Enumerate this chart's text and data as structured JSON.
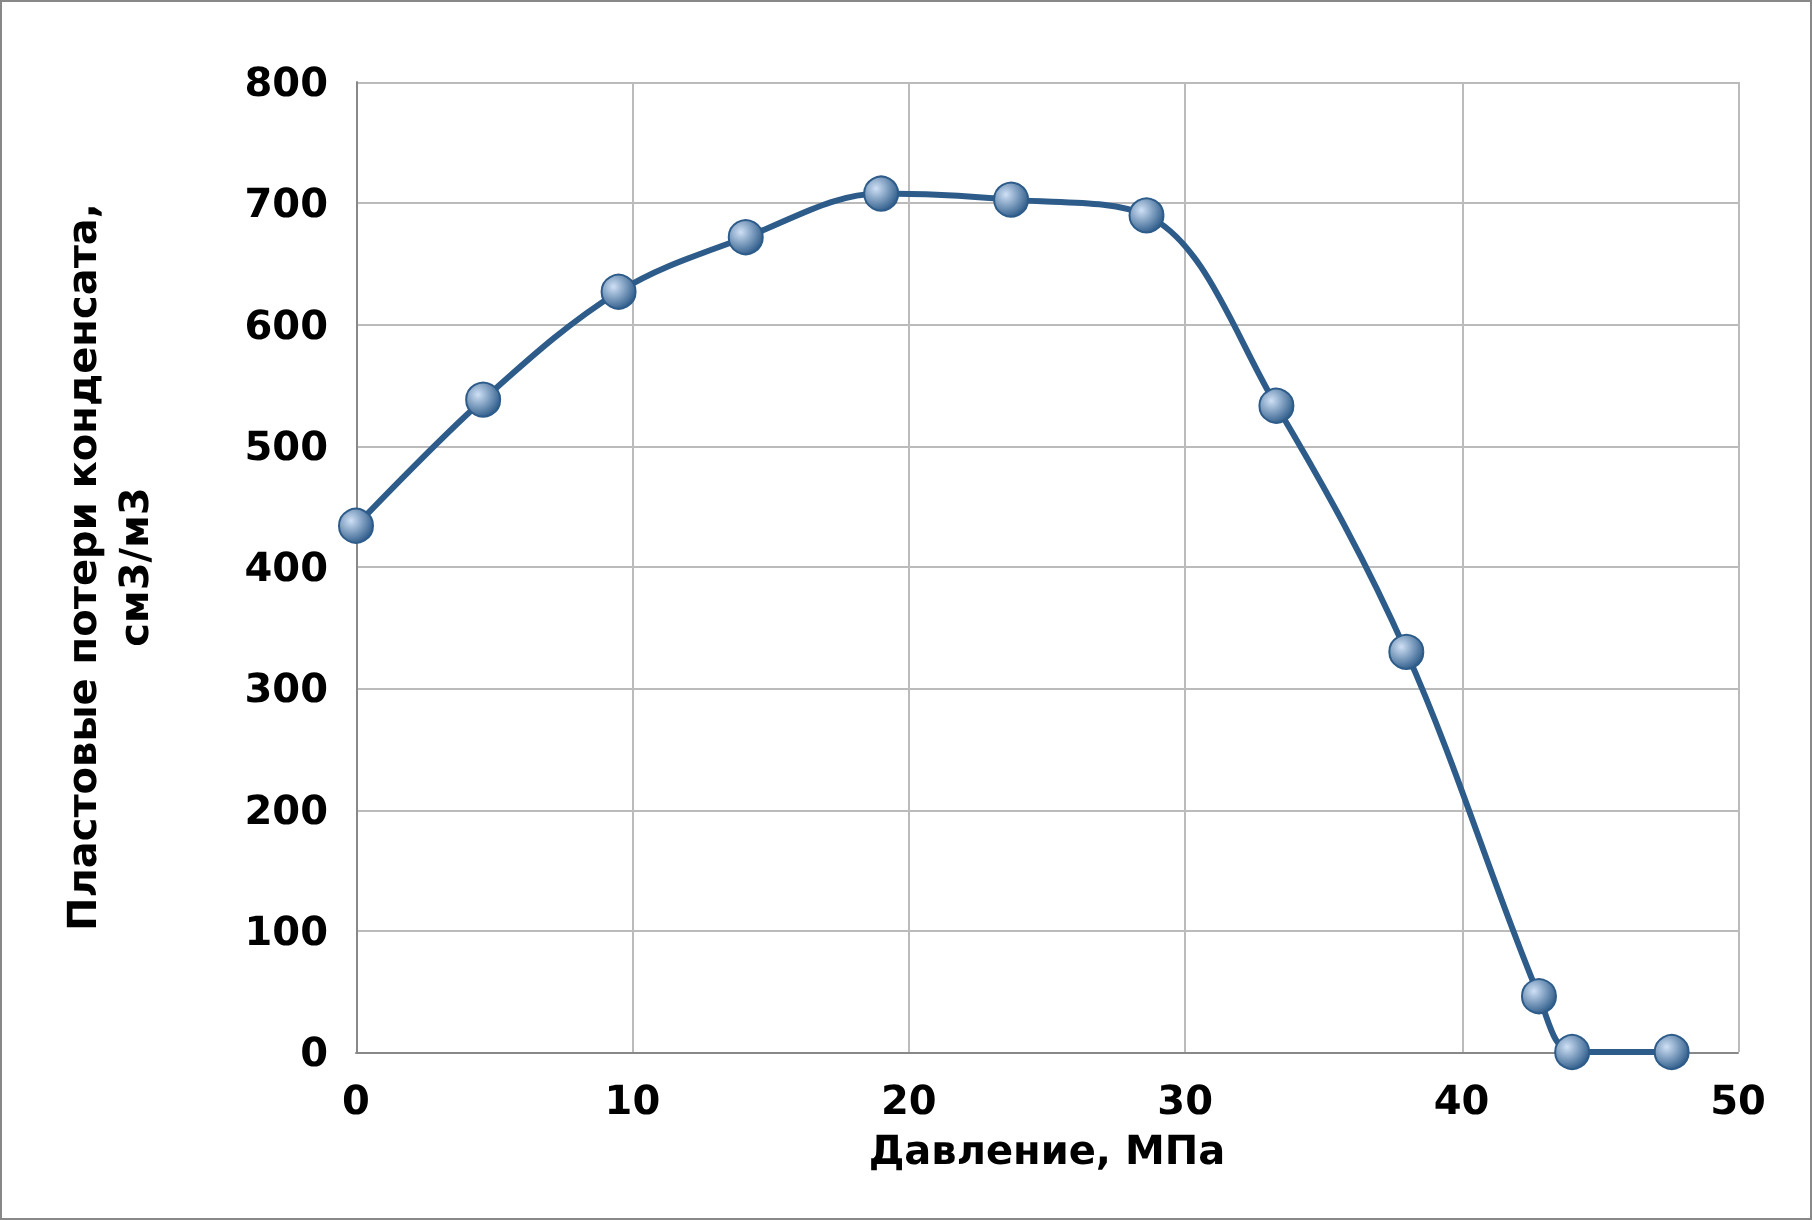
{
  "chart_data": {
    "type": "line",
    "xlabel": "Давление, МПа",
    "ylabel": "Пластовые потери конденсата,\nсм3/м3",
    "x": [
      0,
      4.6,
      9.5,
      14.1,
      19,
      23.7,
      28.6,
      33.3,
      38,
      42.8,
      44,
      47.6
    ],
    "series": [
      {
        "color": "#2e5c8a",
        "values": [
          434,
          538,
          627,
          672,
          708,
          703,
          690,
          533,
          330,
          46,
          0,
          0
        ]
      }
    ],
    "xlim": [
      0,
      50
    ],
    "xticks": [
      0,
      10,
      20,
      30,
      40,
      50
    ],
    "ylim": [
      0,
      800
    ],
    "yticks": [
      0,
      100,
      200,
      300,
      400,
      500,
      600,
      700,
      800
    ],
    "grid": true,
    "marker": "circle",
    "line_style": "solid"
  }
}
